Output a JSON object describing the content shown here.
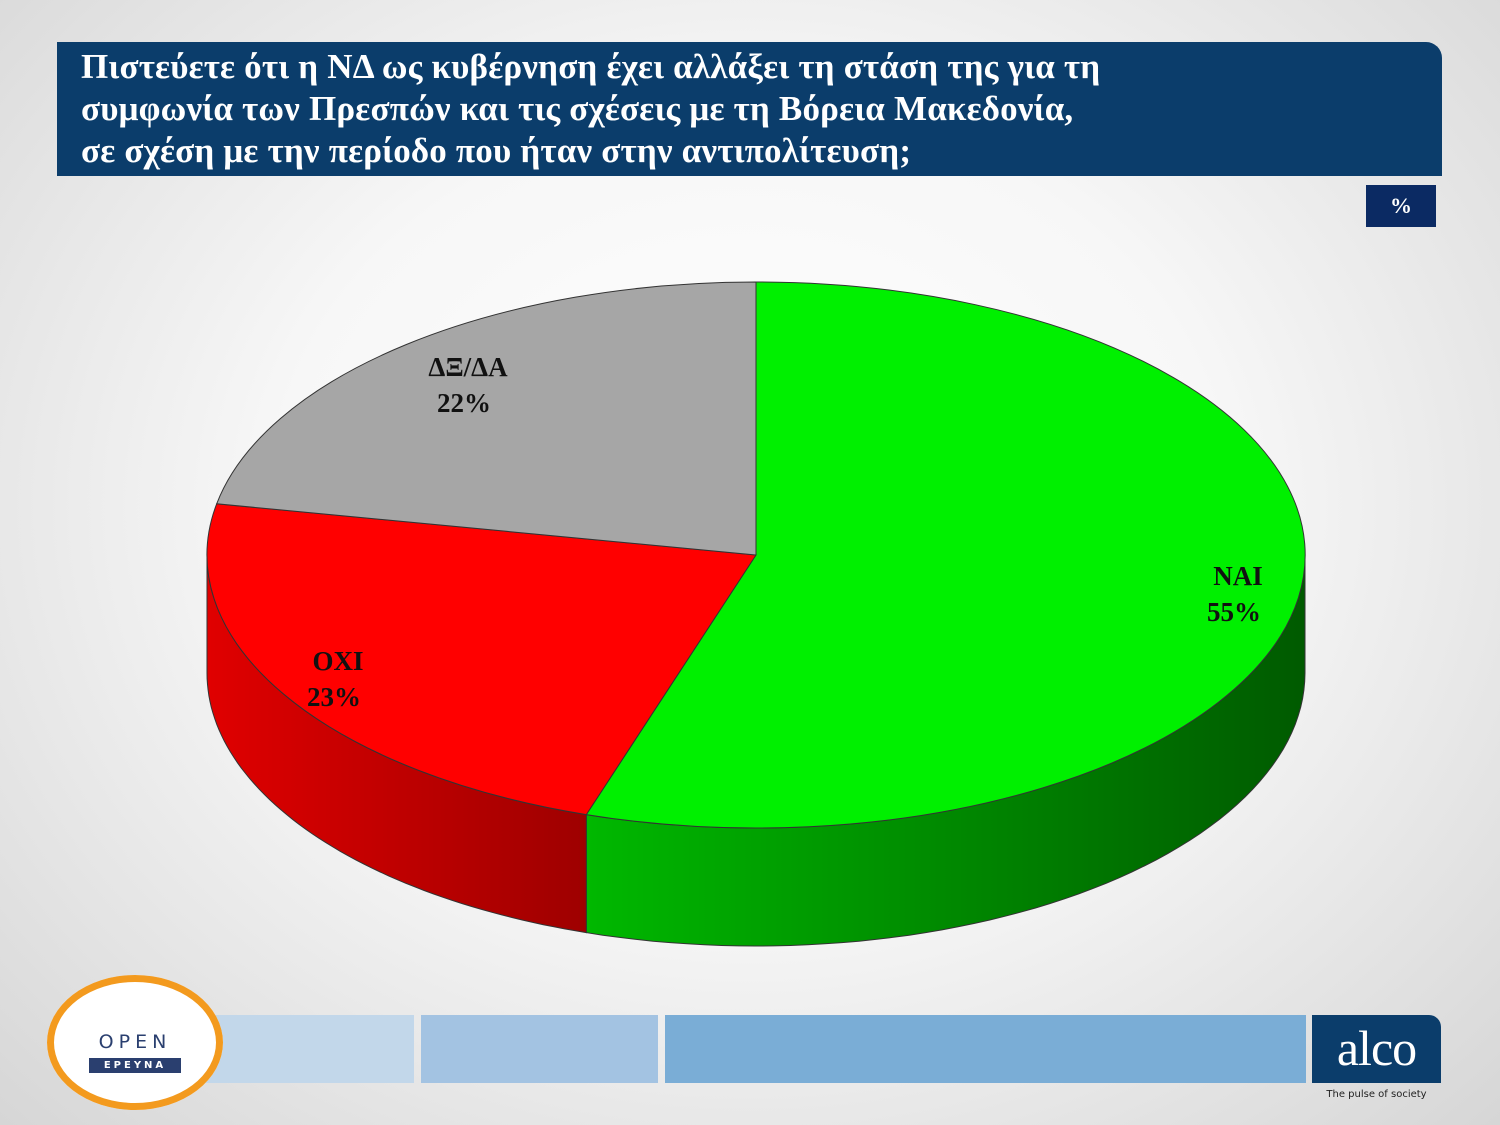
{
  "title": {
    "lines": [
      "Πιστεύετε ότι η ΝΔ ως κυβέρνηση έχει αλλάξει τη στάση της για τη",
      "συμφωνία των Πρεσπών και τις σχέσεις με τη Βόρεια Μακεδονία,",
      "σε σχέση με την περίοδο που ήταν στην αντιπολίτευση;"
    ]
  },
  "unit_badge": "%",
  "chart_data": {
    "type": "pie",
    "title": "",
    "slices": [
      {
        "label": "ΝΑΙ",
        "value": 55,
        "value_label": "55%",
        "color": "#00f000",
        "side_color": "#008a00"
      },
      {
        "label": "ΟΧΙ",
        "value": 23,
        "value_label": "23%",
        "color": "#ff0000",
        "side_color": "#b30000"
      },
      {
        "label": "ΔΞ/ΔΑ",
        "value": 22,
        "value_label": "22%",
        "color": "#a6a6a6",
        "side_color": "#7a7a7a"
      }
    ],
    "style": "3d"
  },
  "footer": {
    "logo_left": {
      "word": "OPEN",
      "sub": "ΕΡΕΥΝΑ",
      "color": "#f39a1e"
    },
    "logo_right": {
      "word": "alco",
      "tagline": "The pulse of society"
    }
  }
}
